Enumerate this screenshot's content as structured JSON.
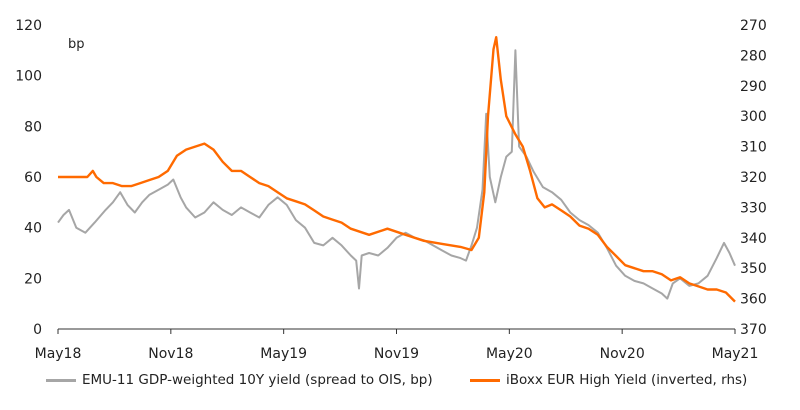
{
  "chart_data": {
    "type": "line",
    "title": "",
    "unit_label": "bp",
    "x_ticks": [
      "May18",
      "Nov18",
      "May19",
      "Nov19",
      "May20",
      "Nov20",
      "May21"
    ],
    "x_range": [
      0,
      37
    ],
    "ylim_left": [
      0,
      120
    ],
    "y_ticks_left": [
      "0",
      "20",
      "40",
      "60",
      "80",
      "100",
      "120"
    ],
    "ylim_right": [
      270,
      370
    ],
    "y_ticks_right": [
      "270",
      "280",
      "290",
      "300",
      "310",
      "320",
      "330",
      "340",
      "350",
      "360",
      "370"
    ],
    "right_axis_inverted": true,
    "grid": false,
    "legend_position": "bottom",
    "series": [
      {
        "name": "EMU-11 GDP-weighted 10Y yield (spread to OIS, bp)",
        "color": "#a6a6a6",
        "axis": "left",
        "points": [
          [
            0.0,
            42
          ],
          [
            0.3,
            45
          ],
          [
            0.6,
            47
          ],
          [
            1.0,
            40
          ],
          [
            1.5,
            38
          ],
          [
            2.0,
            42
          ],
          [
            2.6,
            47
          ],
          [
            3.0,
            50
          ],
          [
            3.4,
            54
          ],
          [
            3.8,
            49
          ],
          [
            4.2,
            46
          ],
          [
            4.6,
            50
          ],
          [
            5.0,
            53
          ],
          [
            5.5,
            55
          ],
          [
            6.0,
            57
          ],
          [
            6.3,
            59
          ],
          [
            6.7,
            52
          ],
          [
            7.0,
            48
          ],
          [
            7.5,
            44
          ],
          [
            8.0,
            46
          ],
          [
            8.5,
            50
          ],
          [
            9.0,
            47
          ],
          [
            9.5,
            45
          ],
          [
            10.0,
            48
          ],
          [
            10.5,
            46
          ],
          [
            11.0,
            44
          ],
          [
            11.5,
            49
          ],
          [
            12.0,
            52
          ],
          [
            12.5,
            49
          ],
          [
            13.0,
            43
          ],
          [
            13.5,
            40
          ],
          [
            14.0,
            34
          ],
          [
            14.5,
            33
          ],
          [
            15.0,
            36
          ],
          [
            15.5,
            33
          ],
          [
            16.0,
            29
          ],
          [
            16.3,
            27
          ],
          [
            16.45,
            16
          ],
          [
            16.6,
            29
          ],
          [
            17.0,
            30
          ],
          [
            17.5,
            29
          ],
          [
            18.0,
            32
          ],
          [
            18.5,
            36
          ],
          [
            19.0,
            38
          ],
          [
            19.5,
            36
          ],
          [
            20.0,
            35
          ],
          [
            20.5,
            33
          ],
          [
            21.0,
            31
          ],
          [
            21.5,
            29
          ],
          [
            22.0,
            28
          ],
          [
            22.3,
            27
          ],
          [
            22.6,
            33
          ],
          [
            22.9,
            40
          ],
          [
            23.2,
            55
          ],
          [
            23.4,
            85
          ],
          [
            23.6,
            60
          ],
          [
            23.9,
            50
          ],
          [
            24.2,
            60
          ],
          [
            24.5,
            68
          ],
          [
            24.8,
            70
          ],
          [
            25.0,
            110
          ],
          [
            25.2,
            72
          ],
          [
            25.6,
            68
          ],
          [
            26.0,
            62
          ],
          [
            26.5,
            56
          ],
          [
            27.0,
            54
          ],
          [
            27.5,
            51
          ],
          [
            28.0,
            46
          ],
          [
            28.5,
            43
          ],
          [
            29.0,
            41
          ],
          [
            29.5,
            38
          ],
          [
            30.0,
            32
          ],
          [
            30.5,
            25
          ],
          [
            31.0,
            21
          ],
          [
            31.5,
            19
          ],
          [
            32.0,
            18
          ],
          [
            32.5,
            16
          ],
          [
            33.0,
            14
          ],
          [
            33.3,
            12
          ],
          [
            33.6,
            18
          ],
          [
            34.0,
            20
          ],
          [
            34.5,
            17
          ],
          [
            35.0,
            18
          ],
          [
            35.5,
            21
          ],
          [
            36.0,
            28
          ],
          [
            36.4,
            34
          ],
          [
            36.7,
            30
          ],
          [
            37.0,
            25
          ]
        ]
      },
      {
        "name": "iBoxx EUR High Yield (inverted, rhs)",
        "color": "#ff6a00",
        "axis": "right",
        "points": [
          [
            0.0,
            320
          ],
          [
            1.0,
            320
          ],
          [
            1.6,
            320
          ],
          [
            1.9,
            318
          ],
          [
            2.1,
            320
          ],
          [
            2.5,
            322
          ],
          [
            3.0,
            322
          ],
          [
            3.5,
            323
          ],
          [
            4.0,
            323
          ],
          [
            4.5,
            322
          ],
          [
            5.0,
            321
          ],
          [
            5.5,
            320
          ],
          [
            6.0,
            318
          ],
          [
            6.5,
            313
          ],
          [
            7.0,
            311
          ],
          [
            7.5,
            310
          ],
          [
            8.0,
            309
          ],
          [
            8.5,
            311
          ],
          [
            9.0,
            315
          ],
          [
            9.5,
            318
          ],
          [
            10.0,
            318
          ],
          [
            10.5,
            320
          ],
          [
            11.0,
            322
          ],
          [
            11.5,
            323
          ],
          [
            12.0,
            325
          ],
          [
            12.5,
            327
          ],
          [
            13.0,
            328
          ],
          [
            13.5,
            329
          ],
          [
            14.0,
            331
          ],
          [
            14.5,
            333
          ],
          [
            15.0,
            334
          ],
          [
            15.5,
            335
          ],
          [
            16.0,
            337
          ],
          [
            17.0,
            339
          ],
          [
            18.0,
            337
          ],
          [
            19.0,
            339
          ],
          [
            20.0,
            341
          ],
          [
            21.0,
            342
          ],
          [
            22.0,
            343
          ],
          [
            22.6,
            344
          ],
          [
            23.0,
            340
          ],
          [
            23.3,
            325
          ],
          [
            23.5,
            300
          ],
          [
            23.8,
            278
          ],
          [
            23.95,
            274
          ],
          [
            24.2,
            288
          ],
          [
            24.5,
            300
          ],
          [
            25.0,
            306
          ],
          [
            25.4,
            310
          ],
          [
            25.8,
            318
          ],
          [
            26.2,
            327
          ],
          [
            26.6,
            330
          ],
          [
            27.0,
            329
          ],
          [
            27.5,
            331
          ],
          [
            28.0,
            333
          ],
          [
            28.5,
            336
          ],
          [
            29.0,
            337
          ],
          [
            29.5,
            339
          ],
          [
            30.0,
            343
          ],
          [
            30.5,
            346
          ],
          [
            31.0,
            349
          ],
          [
            31.5,
            350
          ],
          [
            32.0,
            351
          ],
          [
            32.5,
            351
          ],
          [
            33.0,
            352
          ],
          [
            33.5,
            354
          ],
          [
            34.0,
            353
          ],
          [
            34.5,
            355
          ],
          [
            35.0,
            356
          ],
          [
            35.5,
            357
          ],
          [
            36.0,
            357
          ],
          [
            36.5,
            358
          ],
          [
            37.0,
            361
          ]
        ]
      }
    ]
  }
}
